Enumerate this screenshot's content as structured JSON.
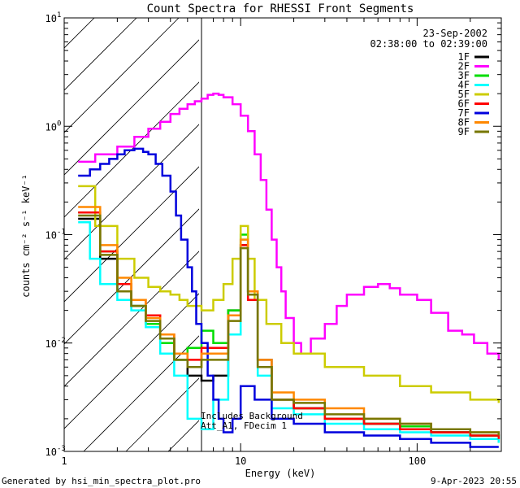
{
  "chart_data": {
    "type": "line",
    "title": "Count Spectra for RHESSI Front Segments",
    "xlabel": "Energy (keV)",
    "ylabel": "counts cm⁻² s⁻¹ keV⁻¹",
    "xscale": "log",
    "yscale": "log",
    "xlim": [
      1,
      300
    ],
    "ylim": [
      0.001,
      10
    ],
    "x_tick_labels": [
      {
        "value": 1,
        "label": "1"
      },
      {
        "value": 10,
        "label": "10"
      },
      {
        "value": 100,
        "label": "100"
      }
    ],
    "y_tick_labels": [
      {
        "value": 10,
        "label": "10",
        "exp": "1"
      },
      {
        "value": 1,
        "label": "10",
        "exp": "0"
      },
      {
        "value": 0.1,
        "label": "10",
        "exp": "-1"
      },
      {
        "value": 0.01,
        "label": "10",
        "exp": "-2"
      },
      {
        "value": 0.001,
        "label": "10",
        "exp": "-3"
      }
    ],
    "hatched_region_xmax": 6,
    "legend_date": "23-Sep-2002",
    "legend_time": "02:38:00 to 02:39:00",
    "annotation_line1": "Includes Background",
    "annotation_line2": "Att_A1, FDecim 1",
    "series": [
      {
        "name": "1F",
        "color": "#000000",
        "points": [
          [
            1.2,
            0.14
          ],
          [
            1.6,
            0.06
          ],
          [
            2.0,
            0.03
          ],
          [
            2.4,
            0.022
          ],
          [
            2.9,
            0.015
          ],
          [
            3.5,
            0.011
          ],
          [
            4.2,
            0.007
          ],
          [
            5.0,
            0.005
          ],
          [
            6.0,
            0.0045
          ],
          [
            7.0,
            0.005
          ],
          [
            8.5,
            0.02
          ],
          [
            10.0,
            0.08
          ],
          [
            11.0,
            0.03
          ],
          [
            12.5,
            0.007
          ],
          [
            15,
            0.003
          ],
          [
            20,
            0.0025
          ],
          [
            30,
            0.002
          ],
          [
            50,
            0.0018
          ],
          [
            80,
            0.0016
          ],
          [
            120,
            0.0015
          ],
          [
            200,
            0.0014
          ],
          [
            290,
            0.0013
          ]
        ]
      },
      {
        "name": "2F",
        "color": "#ff00ff",
        "points": [
          [
            1.2,
            0.47
          ],
          [
            1.5,
            0.55
          ],
          [
            2.0,
            0.65
          ],
          [
            2.5,
            0.8
          ],
          [
            3.0,
            0.95
          ],
          [
            3.5,
            1.1
          ],
          [
            4.0,
            1.3
          ],
          [
            4.5,
            1.45
          ],
          [
            5.0,
            1.6
          ],
          [
            5.5,
            1.7
          ],
          [
            6.0,
            1.8
          ],
          [
            6.5,
            1.95
          ],
          [
            7.0,
            2.0
          ],
          [
            7.5,
            1.95
          ],
          [
            8.0,
            1.85
          ],
          [
            9.0,
            1.6
          ],
          [
            10.0,
            1.25
          ],
          [
            11.0,
            0.9
          ],
          [
            12.0,
            0.55
          ],
          [
            13.0,
            0.32
          ],
          [
            14.0,
            0.17
          ],
          [
            15.0,
            0.09
          ],
          [
            16.0,
            0.05
          ],
          [
            17.0,
            0.03
          ],
          [
            18.0,
            0.017
          ],
          [
            20.0,
            0.01
          ],
          [
            22.0,
            0.008
          ],
          [
            25.0,
            0.011
          ],
          [
            30.0,
            0.015
          ],
          [
            35.0,
            0.022
          ],
          [
            40.0,
            0.028
          ],
          [
            50.0,
            0.033
          ],
          [
            60.0,
            0.035
          ],
          [
            70.0,
            0.032
          ],
          [
            80.0,
            0.028
          ],
          [
            100.0,
            0.025
          ],
          [
            120.0,
            0.019
          ],
          [
            150.0,
            0.013
          ],
          [
            180.0,
            0.012
          ],
          [
            210.0,
            0.01
          ],
          [
            250.0,
            0.008
          ],
          [
            290.0,
            0.007
          ]
        ]
      },
      {
        "name": "3F",
        "color": "#00dd00",
        "points": [
          [
            1.2,
            0.16
          ],
          [
            1.6,
            0.07
          ],
          [
            2.0,
            0.035
          ],
          [
            2.4,
            0.022
          ],
          [
            2.9,
            0.015
          ],
          [
            3.5,
            0.01
          ],
          [
            4.2,
            0.007
          ],
          [
            5.0,
            0.009
          ],
          [
            6.0,
            0.013
          ],
          [
            7.0,
            0.01
          ],
          [
            8.5,
            0.02
          ],
          [
            10.0,
            0.1
          ],
          [
            11.0,
            0.03
          ],
          [
            12.5,
            0.006
          ],
          [
            15,
            0.003
          ],
          [
            20,
            0.0025
          ],
          [
            30,
            0.002
          ],
          [
            50,
            0.0018
          ],
          [
            80,
            0.0017
          ],
          [
            120,
            0.0015
          ],
          [
            200,
            0.0014
          ],
          [
            290,
            0.0012
          ]
        ]
      },
      {
        "name": "4F",
        "color": "#00ffff",
        "points": [
          [
            1.2,
            0.13
          ],
          [
            1.4,
            0.06
          ],
          [
            1.6,
            0.035
          ],
          [
            2.0,
            0.025
          ],
          [
            2.4,
            0.02
          ],
          [
            2.9,
            0.014
          ],
          [
            3.5,
            0.008
          ],
          [
            4.2,
            0.005
          ],
          [
            5.0,
            0.002
          ],
          [
            6.0,
            0.0016
          ],
          [
            7.0,
            0.003
          ],
          [
            8.5,
            0.012
          ],
          [
            10.0,
            0.09
          ],
          [
            11.0,
            0.025
          ],
          [
            12.5,
            0.005
          ],
          [
            15,
            0.0025
          ],
          [
            20,
            0.0022
          ],
          [
            30,
            0.0018
          ],
          [
            50,
            0.0016
          ],
          [
            80,
            0.0015
          ],
          [
            120,
            0.0014
          ],
          [
            200,
            0.0013
          ],
          [
            290,
            0.0012
          ]
        ]
      },
      {
        "name": "5F",
        "color": "#cccc00",
        "points": [
          [
            1.2,
            0.28
          ],
          [
            1.5,
            0.12
          ],
          [
            2.0,
            0.06
          ],
          [
            2.5,
            0.04
          ],
          [
            3.0,
            0.033
          ],
          [
            3.5,
            0.03
          ],
          [
            4.0,
            0.028
          ],
          [
            4.5,
            0.025
          ],
          [
            5.0,
            0.022
          ],
          [
            6.0,
            0.02
          ],
          [
            7.0,
            0.025
          ],
          [
            8.0,
            0.035
          ],
          [
            9.0,
            0.06
          ],
          [
            10.0,
            0.12
          ],
          [
            11.0,
            0.06
          ],
          [
            12.0,
            0.025
          ],
          [
            14.0,
            0.015
          ],
          [
            17.0,
            0.01
          ],
          [
            20.0,
            0.008
          ],
          [
            30.0,
            0.006
          ],
          [
            50.0,
            0.005
          ],
          [
            80.0,
            0.004
          ],
          [
            120.0,
            0.0035
          ],
          [
            200.0,
            0.003
          ],
          [
            290.0,
            0.0028
          ]
        ]
      },
      {
        "name": "6F",
        "color": "#ff0000",
        "points": [
          [
            1.2,
            0.16
          ],
          [
            1.6,
            0.07
          ],
          [
            2.0,
            0.035
          ],
          [
            2.4,
            0.025
          ],
          [
            2.9,
            0.018
          ],
          [
            3.5,
            0.012
          ],
          [
            4.2,
            0.008
          ],
          [
            5.0,
            0.007
          ],
          [
            6.0,
            0.009
          ],
          [
            7.0,
            0.009
          ],
          [
            8.5,
            0.018
          ],
          [
            10.0,
            0.08
          ],
          [
            11.0,
            0.025
          ],
          [
            12.5,
            0.006
          ],
          [
            15,
            0.003
          ],
          [
            20,
            0.0025
          ],
          [
            30,
            0.002
          ],
          [
            50,
            0.0018
          ],
          [
            80,
            0.0016
          ],
          [
            120,
            0.0015
          ],
          [
            200,
            0.0014
          ],
          [
            290,
            0.0013
          ]
        ]
      },
      {
        "name": "7F",
        "color": "#0000dd",
        "points": [
          [
            1.2,
            0.35
          ],
          [
            1.4,
            0.4
          ],
          [
            1.6,
            0.45
          ],
          [
            1.8,
            0.5
          ],
          [
            2.0,
            0.55
          ],
          [
            2.2,
            0.6
          ],
          [
            2.5,
            0.62
          ],
          [
            2.8,
            0.58
          ],
          [
            3.0,
            0.55
          ],
          [
            3.3,
            0.45
          ],
          [
            3.6,
            0.35
          ],
          [
            4.0,
            0.25
          ],
          [
            4.3,
            0.15
          ],
          [
            4.6,
            0.09
          ],
          [
            5.0,
            0.05
          ],
          [
            5.3,
            0.03
          ],
          [
            5.6,
            0.015
          ],
          [
            6.0,
            0.01
          ],
          [
            6.5,
            0.005
          ],
          [
            7.0,
            0.003
          ],
          [
            7.5,
            0.002
          ],
          [
            8.0,
            0.0015
          ],
          [
            9.0,
            0.002
          ],
          [
            10.0,
            0.004
          ],
          [
            12.0,
            0.003
          ],
          [
            15,
            0.002
          ],
          [
            20,
            0.0018
          ],
          [
            30,
            0.0015
          ],
          [
            50,
            0.0014
          ],
          [
            80,
            0.0013
          ],
          [
            120,
            0.0012
          ],
          [
            200,
            0.0011
          ],
          [
            290,
            0.0011
          ]
        ]
      },
      {
        "name": "8F",
        "color": "#ff8800",
        "points": [
          [
            1.2,
            0.18
          ],
          [
            1.6,
            0.08
          ],
          [
            2.0,
            0.04
          ],
          [
            2.4,
            0.025
          ],
          [
            2.9,
            0.017
          ],
          [
            3.5,
            0.012
          ],
          [
            4.2,
            0.008
          ],
          [
            5.0,
            0.006
          ],
          [
            6.0,
            0.008
          ],
          [
            7.0,
            0.008
          ],
          [
            8.5,
            0.018
          ],
          [
            10.0,
            0.09
          ],
          [
            11.0,
            0.03
          ],
          [
            12.5,
            0.007
          ],
          [
            15,
            0.0035
          ],
          [
            20,
            0.003
          ],
          [
            30,
            0.0025
          ],
          [
            50,
            0.002
          ],
          [
            80,
            0.0018
          ],
          [
            120,
            0.0016
          ],
          [
            200,
            0.0015
          ],
          [
            290,
            0.0014
          ]
        ]
      },
      {
        "name": "9F",
        "color": "#777700",
        "points": [
          [
            1.2,
            0.15
          ],
          [
            1.6,
            0.065
          ],
          [
            2.0,
            0.03
          ],
          [
            2.4,
            0.022
          ],
          [
            2.9,
            0.016
          ],
          [
            3.5,
            0.011
          ],
          [
            4.2,
            0.007
          ],
          [
            5.0,
            0.006
          ],
          [
            6.0,
            0.007
          ],
          [
            7.0,
            0.007
          ],
          [
            8.5,
            0.016
          ],
          [
            10.0,
            0.075
          ],
          [
            11.0,
            0.028
          ],
          [
            12.5,
            0.006
          ],
          [
            15,
            0.003
          ],
          [
            20,
            0.0028
          ],
          [
            30,
            0.0022
          ],
          [
            50,
            0.002
          ],
          [
            80,
            0.0018
          ],
          [
            120,
            0.0016
          ],
          [
            200,
            0.0015
          ],
          [
            290,
            0.0014
          ]
        ]
      }
    ]
  },
  "footer": {
    "left": "Generated by hsi_min_spectra_plot.pro",
    "right": "9-Apr-2023 20:55"
  }
}
